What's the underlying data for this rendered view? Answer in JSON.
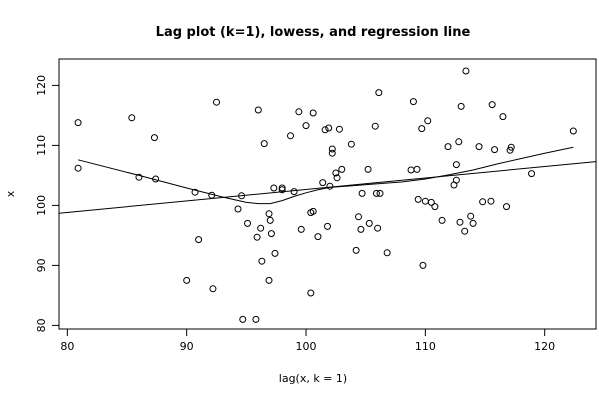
{
  "chart_data": {
    "type": "scatter",
    "title": "Lag plot (k=1), lowess, and regression line",
    "xlabel": "lag(x, k = 1)",
    "ylabel": "x",
    "xlim": [
      79.3,
      124.3
    ],
    "ylim": [
      79.4,
      124.4
    ],
    "xticks": [
      80,
      90,
      100,
      110,
      120
    ],
    "yticks": [
      80,
      90,
      100,
      110,
      120
    ],
    "grid": false,
    "points": [
      [
        80.9,
        113.8
      ],
      [
        80.9,
        106.2
      ],
      [
        85.4,
        114.6
      ],
      [
        86.0,
        104.7
      ],
      [
        87.3,
        111.3
      ],
      [
        87.4,
        104.4
      ],
      [
        90.0,
        87.5
      ],
      [
        90.7,
        102.2
      ],
      [
        91.0,
        94.3
      ],
      [
        92.1,
        101.7
      ],
      [
        92.2,
        86.1
      ],
      [
        92.5,
        117.2
      ],
      [
        94.3,
        99.4
      ],
      [
        94.6,
        101.6
      ],
      [
        94.7,
        81.0
      ],
      [
        95.1,
        97.0
      ],
      [
        95.8,
        81.0
      ],
      [
        95.9,
        94.7
      ],
      [
        96.0,
        115.9
      ],
      [
        96.2,
        96.2
      ],
      [
        96.3,
        90.7
      ],
      [
        96.5,
        110.3
      ],
      [
        96.9,
        98.6
      ],
      [
        96.9,
        87.5
      ],
      [
        97.0,
        97.5
      ],
      [
        97.1,
        95.3
      ],
      [
        97.3,
        102.9
      ],
      [
        97.4,
        92.0
      ],
      [
        98.0,
        102.9
      ],
      [
        98.0,
        102.6
      ],
      [
        98.7,
        111.6
      ],
      [
        99.0,
        102.3
      ],
      [
        99.4,
        115.6
      ],
      [
        99.6,
        96.0
      ],
      [
        100.0,
        113.3
      ],
      [
        100.4,
        98.8
      ],
      [
        100.4,
        85.4
      ],
      [
        100.6,
        99.0
      ],
      [
        100.6,
        115.4
      ],
      [
        101.0,
        94.8
      ],
      [
        101.4,
        103.8
      ],
      [
        101.6,
        112.6
      ],
      [
        101.8,
        96.5
      ],
      [
        101.9,
        112.9
      ],
      [
        102.0,
        103.2
      ],
      [
        102.2,
        109.4
      ],
      [
        102.2,
        108.7
      ],
      [
        102.5,
        105.4
      ],
      [
        102.6,
        104.6
      ],
      [
        102.8,
        112.7
      ],
      [
        103.0,
        106.0
      ],
      [
        103.8,
        110.2
      ],
      [
        104.2,
        92.5
      ],
      [
        104.4,
        98.1
      ],
      [
        104.6,
        96.0
      ],
      [
        104.7,
        102.0
      ],
      [
        105.2,
        106.0
      ],
      [
        105.3,
        97.0
      ],
      [
        105.8,
        113.2
      ],
      [
        105.9,
        102.0
      ],
      [
        106.0,
        96.2
      ],
      [
        106.1,
        118.8
      ],
      [
        106.2,
        102.0
      ],
      [
        106.8,
        92.1
      ],
      [
        108.8,
        105.9
      ],
      [
        109.0,
        117.3
      ],
      [
        109.3,
        106.0
      ],
      [
        109.4,
        101.0
      ],
      [
        109.7,
        112.8
      ],
      [
        109.8,
        90.0
      ],
      [
        110.0,
        100.7
      ],
      [
        110.2,
        114.1
      ],
      [
        110.5,
        100.5
      ],
      [
        110.8,
        99.8
      ],
      [
        111.4,
        97.5
      ],
      [
        111.9,
        109.8
      ],
      [
        112.4,
        103.4
      ],
      [
        112.6,
        104.2
      ],
      [
        112.6,
        106.8
      ],
      [
        112.8,
        110.6
      ],
      [
        112.9,
        97.2
      ],
      [
        113.0,
        116.5
      ],
      [
        113.3,
        95.7
      ],
      [
        113.4,
        122.4
      ],
      [
        113.8,
        98.2
      ],
      [
        114.0,
        97.0
      ],
      [
        114.5,
        109.8
      ],
      [
        114.8,
        100.6
      ],
      [
        115.5,
        100.7
      ],
      [
        115.6,
        116.8
      ],
      [
        115.8,
        109.3
      ],
      [
        116.5,
        114.8
      ],
      [
        116.8,
        99.8
      ],
      [
        117.1,
        109.2
      ],
      [
        117.2,
        109.7
      ],
      [
        118.9,
        105.3
      ],
      [
        122.4,
        112.4
      ]
    ],
    "lowess": [
      [
        80.9,
        107.6
      ],
      [
        86.0,
        105.0
      ],
      [
        90.0,
        102.9
      ],
      [
        93.0,
        101.4
      ],
      [
        95.0,
        100.5
      ],
      [
        96.0,
        100.3
      ],
      [
        97.0,
        100.3
      ],
      [
        98.0,
        100.8
      ],
      [
        99.0,
        101.5
      ],
      [
        100.0,
        102.1
      ],
      [
        101.0,
        102.6
      ],
      [
        102.0,
        103.0
      ],
      [
        104.0,
        103.3
      ],
      [
        106.0,
        103.6
      ],
      [
        108.0,
        103.9
      ],
      [
        110.0,
        104.4
      ],
      [
        112.0,
        105.1
      ],
      [
        114.0,
        105.9
      ],
      [
        116.0,
        106.9
      ],
      [
        118.0,
        107.8
      ],
      [
        120.0,
        108.7
      ],
      [
        122.4,
        109.7
      ]
    ],
    "regression": [
      [
        79.3,
        98.7
      ],
      [
        124.3,
        107.3
      ]
    ]
  }
}
